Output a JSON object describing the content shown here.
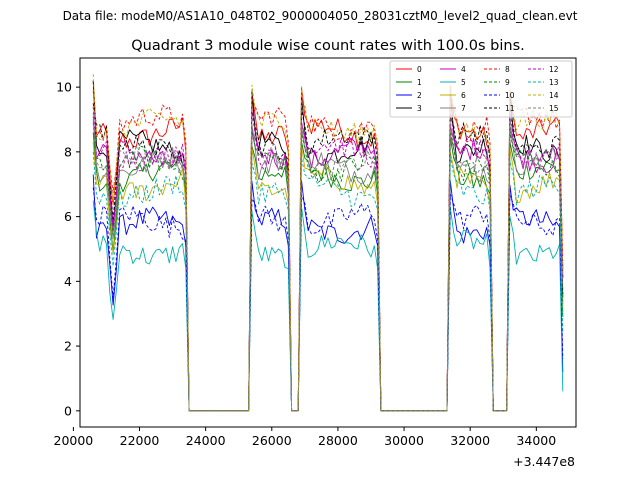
{
  "chart_data": {
    "type": "line",
    "suptitle": "Data file: modeM0/AS1A10_048T02_9000004050_28031cztM0_level2_quad_clean.evt",
    "title": "Quadrant 3 module wise count rates with 100.0s bins.",
    "xlabel": "",
    "ylabel": "",
    "x_offset_label": "+3.447e8",
    "xlim": [
      20200,
      35200
    ],
    "ylim": [
      -0.5,
      10.9
    ],
    "xticks": [
      20000,
      22000,
      24000,
      26000,
      28000,
      30000,
      32000,
      34000
    ],
    "xtick_labels": [
      "20000",
      "22000",
      "24000",
      "26000",
      "28000",
      "30000",
      "32000",
      "34000"
    ],
    "yticks": [
      0,
      2,
      4,
      6,
      8,
      10
    ],
    "ytick_labels": [
      "0",
      "2",
      "4",
      "6",
      "8",
      "10"
    ],
    "grid": false,
    "legend_position": "top-right",
    "x_start": 20600,
    "x_step": 100,
    "gaps": [
      [
        23500,
        25300
      ],
      [
        26600,
        26800
      ],
      [
        29300,
        31300
      ],
      [
        32700,
        33100
      ]
    ],
    "segments": [
      [
        20600,
        23400
      ],
      [
        25400,
        26500
      ],
      [
        26900,
        29200
      ],
      [
        31400,
        32600
      ],
      [
        33200,
        34800
      ]
    ],
    "series": [
      {
        "name": "0",
        "color": "#ff0000",
        "dash": "solid",
        "level": 8.6,
        "start": 10.2,
        "end": 8.2
      },
      {
        "name": "1",
        "color": "#008000",
        "dash": "solid",
        "level": 7.3,
        "start": 8.6,
        "end": 7.0
      },
      {
        "name": "2",
        "color": "#0000ff",
        "dash": "solid",
        "level": 5.7,
        "start": 7.3,
        "end": 5.6
      },
      {
        "name": "3",
        "color": "#000000",
        "dash": "solid",
        "level": 8.1,
        "start": 10.2,
        "end": 7.9
      },
      {
        "name": "4",
        "color": "#c000c0",
        "dash": "solid",
        "level": 7.9,
        "start": 9.1,
        "end": 7.6
      },
      {
        "name": "5",
        "color": "#00b0b0",
        "dash": "solid",
        "level": 5.0,
        "start": 6.5,
        "end": 5.0
      },
      {
        "name": "6",
        "color": "#c0b000",
        "dash": "solid",
        "level": 7.0,
        "start": 8.3,
        "end": 7.0
      },
      {
        "name": "7",
        "color": "#808080",
        "dash": "solid",
        "level": 7.6,
        "start": 9.0,
        "end": 7.4
      },
      {
        "name": "8",
        "color": "#ff0000",
        "dash": "dashed",
        "level": 8.9,
        "start": 9.9,
        "end": 8.7
      },
      {
        "name": "9",
        "color": "#008000",
        "dash": "dashed",
        "level": 7.6,
        "start": 8.9,
        "end": 7.2
      },
      {
        "name": "10",
        "color": "#0000ff",
        "dash": "dashed",
        "level": 5.9,
        "start": 6.9,
        "end": 5.7
      },
      {
        "name": "11",
        "color": "#000000",
        "dash": "dashed",
        "level": 8.3,
        "start": 9.5,
        "end": 8.0
      },
      {
        "name": "12",
        "color": "#c000c0",
        "dash": "dashed",
        "level": 8.0,
        "start": 9.4,
        "end": 7.9
      },
      {
        "name": "13",
        "color": "#00b0b0",
        "dash": "dashed",
        "level": 6.8,
        "start": 8.0,
        "end": 6.5
      },
      {
        "name": "14",
        "color": "#c0b000",
        "dash": "dashed",
        "level": 8.8,
        "start": 10.4,
        "end": 8.6
      },
      {
        "name": "15",
        "color": "#808080",
        "dash": "dashed",
        "level": 7.7,
        "start": 9.2,
        "end": 7.6
      }
    ]
  }
}
